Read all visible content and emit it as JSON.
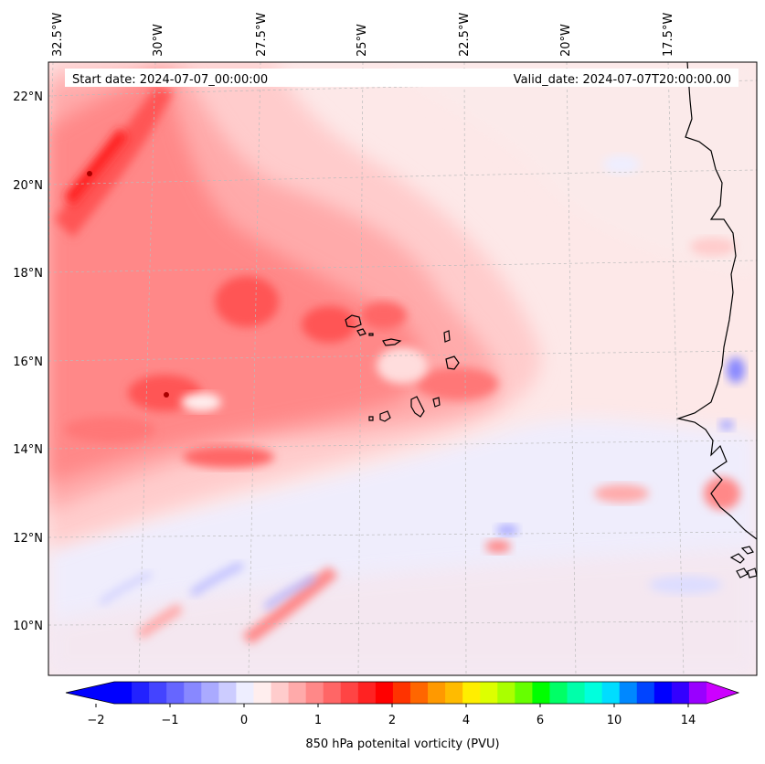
{
  "header": {
    "start_date": "Start date: 2024-07-07_00:00:00",
    "valid_date": "Valid_date: 2024-07-07T20:00:00.00"
  },
  "map": {
    "lon_labels": [
      "32.5°W",
      "30°W",
      "27.5°W",
      "25°W",
      "22.5°W",
      "20°W",
      "17.5°W"
    ],
    "lat_labels": [
      "22°N",
      "20°N",
      "18°N",
      "16°N",
      "14°N",
      "12°N",
      "10°N"
    ],
    "lon_range": [
      -33,
      -15.2
    ],
    "lat_range": [
      8.9,
      22.8
    ],
    "gridlines": true,
    "features": [
      "coastline-west-africa",
      "cape-verde-islands"
    ]
  },
  "colorbar": {
    "label": "850 hPa potenital vorticity (PVU)",
    "tick_labels": [
      "−2",
      "−1",
      "0",
      "1",
      "2",
      "4",
      "6",
      "10",
      "14"
    ],
    "extend": "both",
    "colors": [
      "#0000ff",
      "#2222ff",
      "#4444ff",
      "#6666ff",
      "#8888ff",
      "#aaaaff",
      "#ccccff",
      "#eeeeff",
      "#ffeeee",
      "#ffcccc",
      "#ffaaaa",
      "#ff8888",
      "#ff6666",
      "#ff4444",
      "#ff2222",
      "#ff0000",
      "#ff3300",
      "#ff6600",
      "#ff9900",
      "#ffbb00",
      "#ffee00",
      "#ddff00",
      "#aaff00",
      "#66ff00",
      "#00ff00",
      "#00ff66",
      "#00ffaa",
      "#00ffdd",
      "#00ddff",
      "#0088ff",
      "#0044ff",
      "#0000ff",
      "#3300ff",
      "#9900ff"
    ],
    "extend_low_color": "#0000ff",
    "extend_high_color": "#cc00ff"
  }
}
